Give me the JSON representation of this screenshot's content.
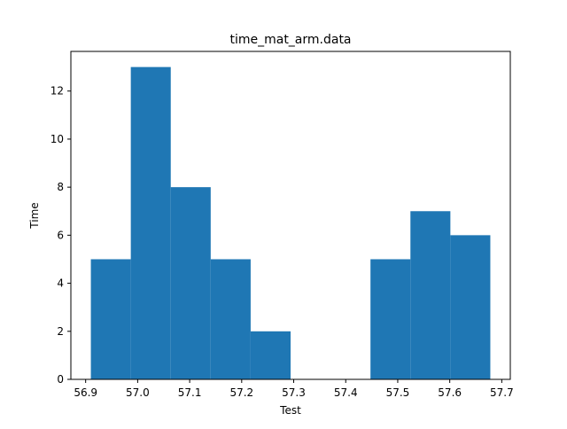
{
  "chart_data": {
    "type": "bar",
    "title": "time_mat_arm.data",
    "xlabel": "Test",
    "ylabel": "Time",
    "bin_edges": [
      56.91,
      56.9868,
      57.0636,
      57.1404,
      57.2172,
      57.294,
      57.3708,
      57.4476,
      57.5244,
      57.6012,
      57.678
    ],
    "values": [
      5,
      13,
      8,
      5,
      2,
      0,
      0,
      5,
      7,
      6
    ],
    "xlim": [
      56.8716,
      57.7164
    ],
    "ylim": [
      0,
      13.65
    ],
    "xticks": [
      56.9,
      57.0,
      57.1,
      57.2,
      57.3,
      57.4,
      57.5,
      57.6,
      57.7
    ],
    "xtick_labels": [
      "56.9",
      "57.0",
      "57.1",
      "57.2",
      "57.3",
      "57.4",
      "57.5",
      "57.6",
      "57.7"
    ],
    "yticks": [
      0,
      2,
      4,
      6,
      8,
      10,
      12
    ],
    "ytick_labels": [
      "0",
      "2",
      "4",
      "6",
      "8",
      "10",
      "12"
    ],
    "bar_color": "#1f77b4",
    "grid": false,
    "legend": "none"
  }
}
